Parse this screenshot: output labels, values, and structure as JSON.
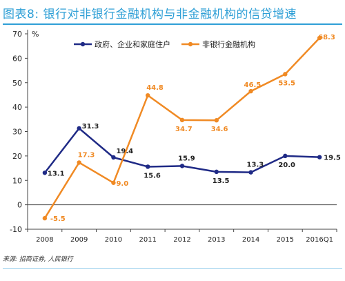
{
  "title": "图表8: 银行对非银行金融机构与非金融机构的信贷增速",
  "source": "来源: 招商证券, 人民银行",
  "colors": {
    "title": "#2e9fd6",
    "series_0": "#1f2a86",
    "series_1": "#f08a24",
    "axis": "#444444"
  },
  "chart_data": {
    "type": "line",
    "title": "图表8: 银行对非银行金融机构与非金融机构的信贷增速",
    "categories": [
      "2008",
      "2009",
      "2010",
      "2011",
      "2012",
      "2013",
      "2014",
      "2015",
      "2016Q1"
    ],
    "y_unit": "%",
    "ylim": [
      -10,
      70
    ],
    "yticks": [
      -10,
      0,
      10,
      20,
      30,
      40,
      50,
      60,
      70
    ],
    "grid": false,
    "legend_position": "top",
    "series": [
      {
        "name": "政府、企业和家庭住户",
        "values": [
          13.1,
          31.3,
          19.4,
          15.6,
          15.9,
          13.5,
          13.3,
          20.0,
          19.5
        ],
        "labels": [
          "13.1",
          "31.3",
          "19.4",
          "15.6",
          "15.9",
          "13.5",
          "13.3",
          "20.0",
          "19.5"
        ]
      },
      {
        "name": "非银行金融机构",
        "values": [
          -5.5,
          17.3,
          9.0,
          44.8,
          34.7,
          34.6,
          46.5,
          53.5,
          68.3
        ],
        "labels": [
          "-5.5",
          "17.3",
          "9.0",
          "44.8",
          "34.7",
          "34.6",
          "46.5",
          "53.5",
          "68.3"
        ]
      }
    ]
  }
}
